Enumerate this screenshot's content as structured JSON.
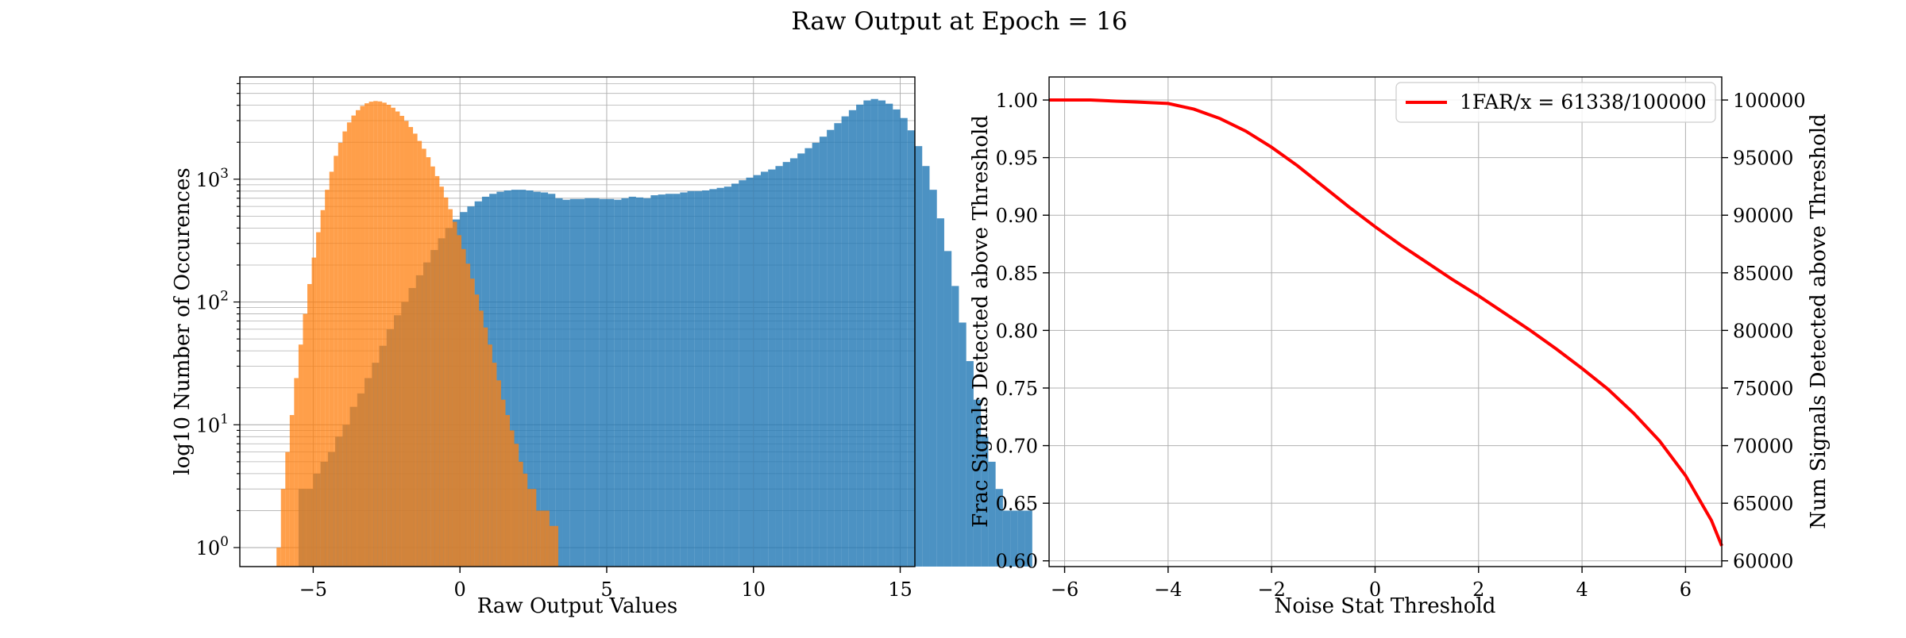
{
  "figure": {
    "title": "Raw Output at Epoch = 16"
  },
  "chart_data": [
    {
      "type": "bar",
      "subtype": "histogram",
      "yscale": "log",
      "xlabel": "Raw Output Values",
      "ylabel": "log10 Number of Occurences",
      "xlim": [
        -7.5,
        15.5
      ],
      "ylim": [
        0.7,
        6800
      ],
      "xticks": [
        -5,
        0,
        5,
        10,
        15
      ],
      "yticks": [
        1,
        10,
        100,
        1000
      ],
      "ytick_labels": [
        {
          "base": "10",
          "exp": "0"
        },
        {
          "base": "10",
          "exp": "1"
        },
        {
          "base": "10",
          "exp": "2"
        },
        {
          "base": "10",
          "exp": "3"
        }
      ],
      "grid": true,
      "series": [
        {
          "color": "#1f77b4",
          "alpha": 0.8,
          "x_start": -5.5,
          "bin_width": 0.25,
          "values": [
            3,
            3,
            4,
            5,
            6,
            8,
            10,
            14,
            18,
            24,
            32,
            44,
            60,
            78,
            100,
            130,
            165,
            210,
            265,
            330,
            400,
            470,
            540,
            600,
            660,
            720,
            760,
            790,
            810,
            820,
            820,
            810,
            790,
            780,
            760,
            700,
            680,
            690,
            690,
            700,
            700,
            690,
            690,
            680,
            700,
            720,
            710,
            700,
            740,
            750,
            760,
            760,
            780,
            800,
            800,
            810,
            830,
            850,
            870,
            920,
            980,
            1030,
            1080,
            1150,
            1200,
            1280,
            1380,
            1480,
            1620,
            1790,
            1980,
            2220,
            2520,
            2860,
            3250,
            3650,
            4050,
            4380,
            4500,
            4380,
            4120,
            3700,
            3150,
            2500,
            1860,
            1280,
            820,
            480,
            260,
            135,
            68,
            33,
            16,
            8,
            5,
            3,
            2,
            2,
            2,
            2
          ]
        },
        {
          "color": "#ff7f0e",
          "alpha": 0.75,
          "x_start": -6.25,
          "bin_width": 0.15,
          "values": [
            1,
            3,
            6,
            12,
            24,
            45,
            80,
            140,
            230,
            370,
            560,
            820,
            1150,
            1550,
            1980,
            2450,
            2900,
            3300,
            3650,
            3950,
            4150,
            4280,
            4330,
            4300,
            4200,
            4040,
            3820,
            3560,
            3280,
            2980,
            2660,
            2350,
            2050,
            1770,
            1510,
            1270,
            1060,
            870,
            710,
            570,
            450,
            350,
            270,
            205,
            155,
            115,
            85,
            62,
            45,
            32,
            23,
            16,
            12,
            9,
            7,
            5,
            4,
            3,
            3,
            2,
            2,
            2,
            1.5,
            1.5
          ]
        }
      ]
    },
    {
      "type": "line",
      "xlabel": "Noise Stat Threshold",
      "ylabel": "Frac Signals Detected above Threshold",
      "ylabel_right": "Num Signals Detected above Threshold",
      "xlim": [
        -6.3,
        6.7
      ],
      "ylim": [
        0.595,
        1.02
      ],
      "ylim_right": [
        59500,
        102000
      ],
      "xticks": [
        -6,
        -4,
        -2,
        0,
        2,
        4,
        6
      ],
      "yticks": [
        0.6,
        0.65,
        0.7,
        0.75,
        0.8,
        0.85,
        0.9,
        0.95,
        1.0
      ],
      "yticks_right": [
        60000,
        65000,
        70000,
        75000,
        80000,
        85000,
        90000,
        95000,
        100000
      ],
      "grid": true,
      "legend_position": "top-right",
      "series": [
        {
          "name": "1FAR/x = 61338/100000",
          "color": "#ff0000",
          "x": [
            -6.3,
            -6.0,
            -5.5,
            -5.0,
            -4.5,
            -4.0,
            -3.5,
            -3.0,
            -2.5,
            -2.0,
            -1.5,
            -1.0,
            -0.5,
            0.0,
            0.5,
            1.0,
            1.5,
            2.0,
            2.5,
            3.0,
            3.5,
            4.0,
            4.5,
            5.0,
            5.5,
            6.0,
            6.5,
            6.7
          ],
          "y": [
            1.0,
            1.0,
            1.0,
            0.999,
            0.998,
            0.997,
            0.992,
            0.984,
            0.973,
            0.959,
            0.943,
            0.925,
            0.907,
            0.89,
            0.874,
            0.859,
            0.844,
            0.83,
            0.815,
            0.8,
            0.784,
            0.767,
            0.749,
            0.728,
            0.704,
            0.674,
            0.635,
            0.613
          ]
        }
      ]
    }
  ]
}
